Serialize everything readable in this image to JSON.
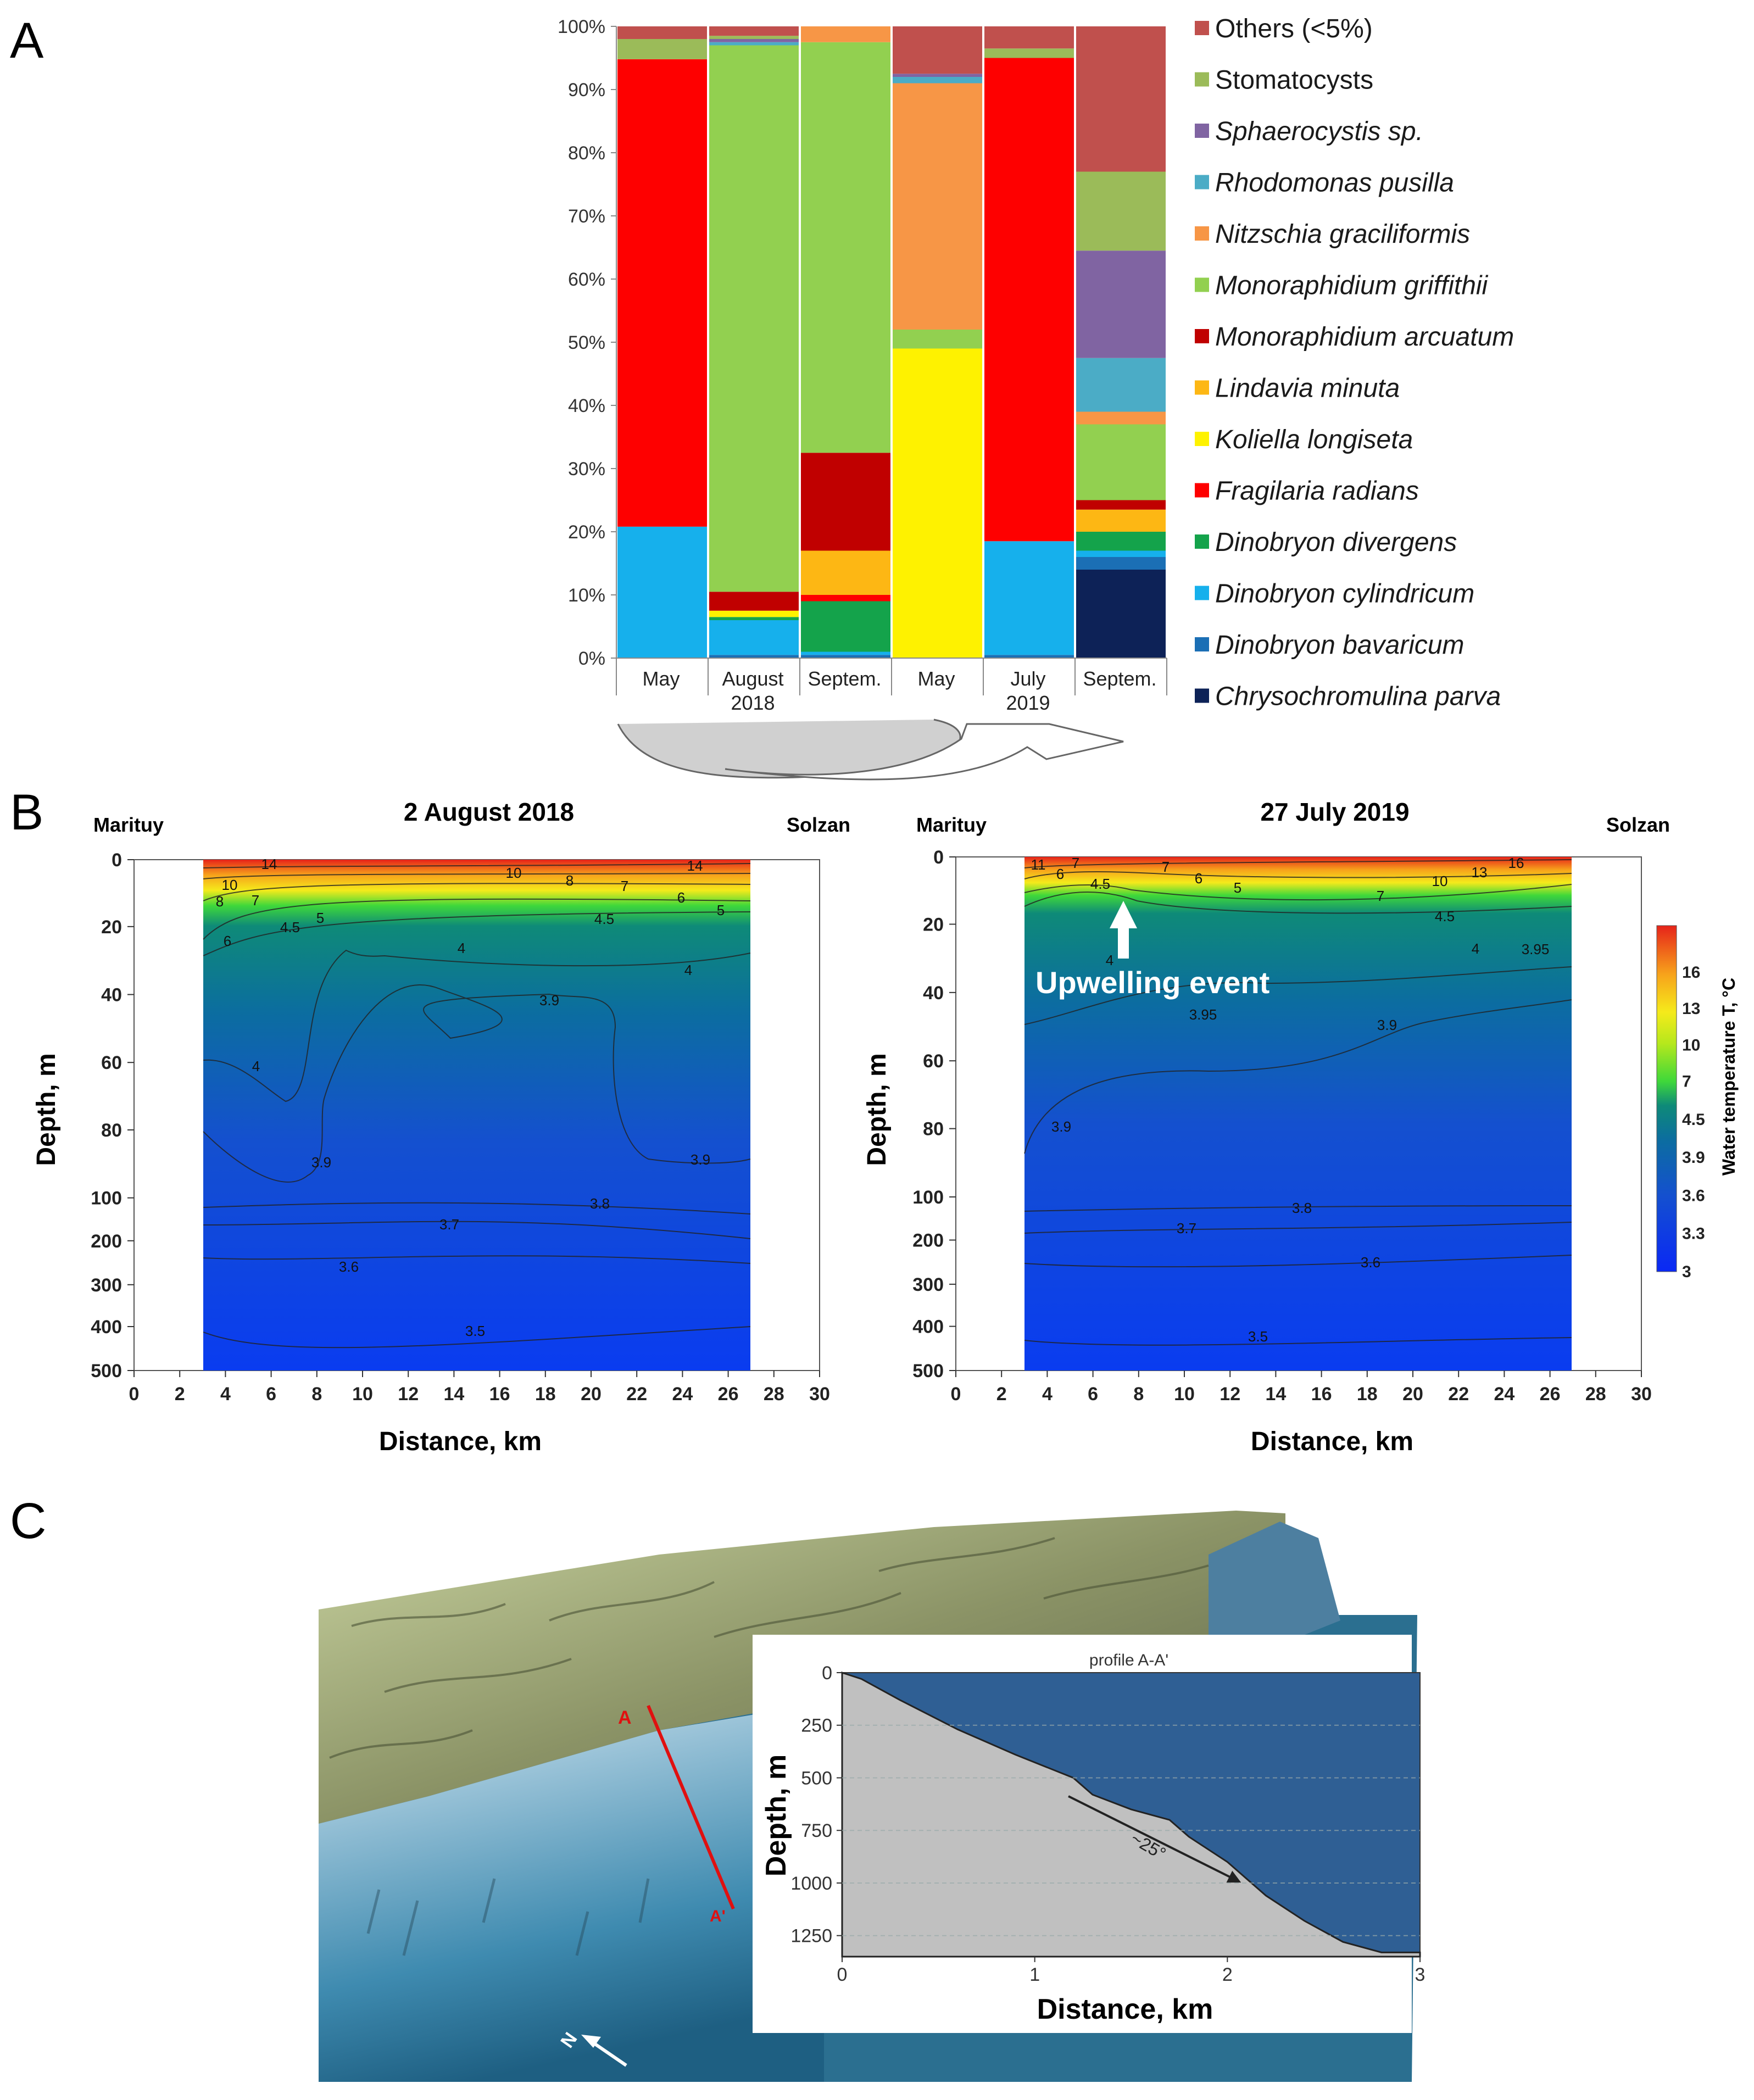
{
  "panels": {
    "a": "A",
    "b": "B",
    "c": "C"
  },
  "chart_data": [
    {
      "type": "bar",
      "stacked": true,
      "title": "",
      "ylabel": "",
      "ylim": [
        0,
        100
      ],
      "yticks": [
        "0%",
        "10%",
        "20%",
        "30%",
        "40%",
        "50%",
        "60%",
        "70%",
        "80%",
        "90%",
        "100%"
      ],
      "categories": [
        "May",
        "August",
        "Septem.",
        "May",
        "July",
        "Septem."
      ],
      "year_labels": [
        {
          "text": "2018",
          "category_index": 1
        },
        {
          "text": "2019",
          "category_index": 4
        }
      ],
      "legend_position": "right",
      "series": [
        {
          "name": "Chrysochromulina parva",
          "color": "#0d2257",
          "values": [
            0,
            0,
            0,
            0,
            0,
            14
          ]
        },
        {
          "name": "Dinobryon bavaricum",
          "color": "#1b6fb5",
          "values": [
            0,
            0.5,
            0.5,
            0,
            0.5,
            2
          ]
        },
        {
          "name": "Dinobryon cylindricum",
          "color": "#16b0ec",
          "values": [
            20.8,
            5.5,
            0.5,
            0,
            18,
            1
          ]
        },
        {
          "name": "Dinobryon divergens",
          "color": "#14a34b",
          "values": [
            0,
            0.5,
            8,
            0,
            0,
            3
          ]
        },
        {
          "name": "Fragilaria radians",
          "color": "#fe0000",
          "values": [
            74,
            0,
            1,
            0,
            76.5,
            0
          ]
        },
        {
          "name": "Koliella longiseta",
          "color": "#fef200",
          "values": [
            0,
            1,
            0,
            49,
            0,
            0
          ]
        },
        {
          "name": "Lindavia minuta",
          "color": "#fdb714",
          "values": [
            0,
            0,
            7,
            0,
            0,
            3.5
          ]
        },
        {
          "name": "Monoraphidium arcuatum",
          "color": "#c00000",
          "values": [
            0,
            3,
            15.5,
            0,
            0,
            1.5
          ]
        },
        {
          "name": "Monoraphidium griffithii",
          "color": "#92d050",
          "values": [
            0,
            86.5,
            65,
            3,
            0,
            12
          ]
        },
        {
          "name": "Nitzschia graciliformis",
          "color": "#f79646",
          "values": [
            0,
            0,
            2.5,
            39,
            0,
            2
          ]
        },
        {
          "name": "Rhodomonas pusilla",
          "color": "#4bacc6",
          "values": [
            0,
            0.5,
            0,
            1,
            0,
            8.5
          ]
        },
        {
          "name": "Sphaerocystis sp.",
          "color": "#8064a2",
          "values": [
            0,
            0.5,
            0,
            0.5,
            0,
            17
          ]
        },
        {
          "name": "Stomatocysts",
          "color": "#9bbb59",
          "values": [
            3.2,
            0.5,
            0,
            0,
            1.5,
            12.5
          ]
        },
        {
          "name": "Others (<5%)",
          "color": "#c0504d",
          "values": [
            2,
            1.5,
            0,
            7.5,
            3.5,
            23
          ]
        }
      ]
    },
    {
      "type": "heatmap",
      "title": "2 August  2018",
      "left_station": "Marituy",
      "right_station": "Solzan",
      "xlabel": "Distance, km",
      "ylabel": "Depth, m",
      "xlim": [
        0,
        30
      ],
      "xticks": [
        "0",
        "2",
        "4",
        "6",
        "8",
        "10",
        "12",
        "14",
        "16",
        "18",
        "20",
        "22",
        "24",
        "26",
        "28",
        "30"
      ],
      "yticks": [
        "0",
        "20",
        "40",
        "60",
        "80",
        "100",
        "200",
        "300",
        "400",
        "500"
      ],
      "data_xrange": [
        3,
        27
      ],
      "contour_labels": [
        "14",
        "10",
        "8",
        "7",
        "6",
        "5",
        "4.5",
        "10",
        "8",
        "7",
        "14",
        "6",
        "5",
        "4.5",
        "4",
        "4",
        "3.9",
        "4",
        "3.9",
        "3.9",
        "3.8",
        "3.7",
        "3.6",
        "3.5"
      ]
    },
    {
      "type": "heatmap",
      "title": "27 July 2019",
      "left_station": "Marituy",
      "right_station": "Solzan",
      "xlabel": "Distance, km",
      "ylabel": "Depth, m",
      "xlim": [
        0,
        30
      ],
      "xticks": [
        "0",
        "2",
        "4",
        "6",
        "8",
        "10",
        "12",
        "14",
        "16",
        "18",
        "20",
        "22",
        "24",
        "26",
        "28",
        "30"
      ],
      "yticks": [
        "0",
        "20",
        "40",
        "60",
        "80",
        "100",
        "200",
        "300",
        "400",
        "500"
      ],
      "data_xrange": [
        3,
        27
      ],
      "annotation": "Upwelling event",
      "contour_labels": [
        "11",
        "7",
        "6",
        "4.5",
        "7",
        "6",
        "5",
        "7",
        "10",
        "13",
        "16",
        "4.5",
        "4",
        "3.95",
        "4",
        "3.95",
        "3.9",
        "3.9",
        "3.8",
        "3.7",
        "3.6",
        "3.5"
      ],
      "colorbar": {
        "label": "Water temperature T, °C",
        "ticks": [
          "3",
          "3.3",
          "3.6",
          "3.9",
          "4.5",
          "7",
          "10",
          "13",
          "16"
        ]
      }
    },
    {
      "type": "line",
      "title": "profile A-A'",
      "xlabel": "Distance, km",
      "ylabel": "Depth, m",
      "xlim": [
        0,
        3
      ],
      "ylim": [
        1350,
        0
      ],
      "xticks": [
        "0",
        "1",
        "2",
        "3"
      ],
      "yticks": [
        "0",
        "250",
        "500",
        "750",
        "1000",
        "1250"
      ],
      "annotation": "~25°",
      "series": [
        {
          "name": "bottom profile",
          "x": [
            0,
            0.1,
            0.3,
            0.6,
            0.9,
            1.2,
            1.3,
            1.5,
            1.7,
            1.8,
            2.0,
            2.2,
            2.4,
            2.6,
            2.8,
            3.0
          ],
          "y": [
            0,
            30,
            130,
            270,
            390,
            500,
            580,
            650,
            700,
            780,
            900,
            1060,
            1180,
            1280,
            1330,
            1330
          ]
        }
      ]
    }
  ],
  "map": {
    "section_start": "A",
    "section_end": "A'",
    "north_label": "N"
  }
}
